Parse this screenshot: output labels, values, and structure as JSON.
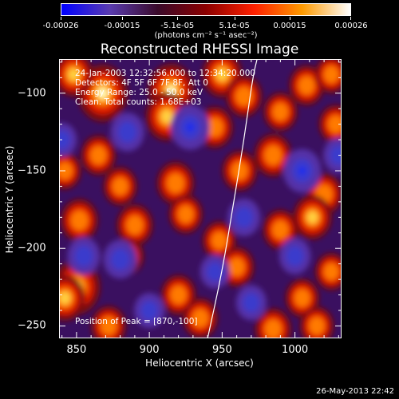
{
  "colorbar": {
    "min": -0.00026,
    "max": 0.00026,
    "tick_labels": [
      "-0.00026",
      "-0.00015",
      "-5.1e-05",
      "5.1e-05",
      "0.00015",
      "0.00026"
    ],
    "tick_values": [
      -0.00026,
      -0.00015,
      -5.1e-05,
      5.1e-05,
      0.00015,
      0.00026
    ],
    "unit_label": "(photons cm⁻² s⁻¹ asec⁻²)",
    "colors": [
      "#0000ff",
      "#5a3cb0",
      "#3a0a2a",
      "#8b0000",
      "#ff2000",
      "#ff9a00",
      "#ffffff"
    ]
  },
  "chart_data": {
    "type": "heatmap",
    "title": "Reconstructed RHESSI Image",
    "xlabel": "Heliocentric X (arcsec)",
    "ylabel": "Heliocentric Y (arcsec)",
    "xlim": [
      838,
      1032
    ],
    "ylim": [
      -258,
      -78
    ],
    "xticks": [
      850,
      900,
      950,
      1000
    ],
    "yticks": [
      -100,
      -150,
      -200,
      -250
    ],
    "annotations": [
      "24-Jan-2003 12:32:56.000 to 12:34:20.000",
      "Detectors: 4F 5F 6F 7F 8F, Att 0",
      "Energy Range: 25.0 - 50.0 keV",
      "Clean.  Total counts: 1.68E+03"
    ],
    "peak_text": "Position of Peak = [870,-100]",
    "peak": [
      870,
      -100
    ],
    "limb_points": [
      [
        940,
        -258
      ],
      [
        950,
        -215
      ],
      [
        958,
        -170
      ],
      [
        965,
        -130
      ],
      [
        971,
        -90
      ],
      [
        974,
        -78
      ]
    ],
    "sources": [
      {
        "x": 868,
        "y": -100,
        "v": 1.0
      },
      {
        "x": 848,
        "y": -88,
        "v": 0.55
      },
      {
        "x": 915,
        "y": -98,
        "v": 0.85
      },
      {
        "x": 912,
        "y": -115,
        "v": 0.7
      },
      {
        "x": 950,
        "y": -88,
        "v": 0.6
      },
      {
        "x": 965,
        "y": -102,
        "v": 0.45
      },
      {
        "x": 1008,
        "y": -95,
        "v": 0.4
      },
      {
        "x": 1025,
        "y": -88,
        "v": 0.3
      },
      {
        "x": 945,
        "y": -122,
        "v": 0.45
      },
      {
        "x": 990,
        "y": -112,
        "v": 0.35
      },
      {
        "x": 865,
        "y": -140,
        "v": 0.4
      },
      {
        "x": 985,
        "y": -140,
        "v": 0.5
      },
      {
        "x": 1028,
        "y": -120,
        "v": 0.35
      },
      {
        "x": 842,
        "y": -150,
        "v": 0.3
      },
      {
        "x": 880,
        "y": -160,
        "v": 0.35
      },
      {
        "x": 918,
        "y": -158,
        "v": 0.5
      },
      {
        "x": 962,
        "y": -150,
        "v": 0.4
      },
      {
        "x": 1020,
        "y": -165,
        "v": 0.45
      },
      {
        "x": 852,
        "y": -182,
        "v": 0.5
      },
      {
        "x": 890,
        "y": -185,
        "v": 0.45
      },
      {
        "x": 925,
        "y": -178,
        "v": 0.35
      },
      {
        "x": 990,
        "y": -188,
        "v": 0.4
      },
      {
        "x": 1012,
        "y": -180,
        "v": 0.55
      },
      {
        "x": 948,
        "y": -195,
        "v": 0.35
      },
      {
        "x": 885,
        "y": -205,
        "v": 0.3
      },
      {
        "x": 960,
        "y": -212,
        "v": 0.4
      },
      {
        "x": 850,
        "y": -225,
        "v": 0.9
      },
      {
        "x": 842,
        "y": -232,
        "v": 0.6
      },
      {
        "x": 920,
        "y": -230,
        "v": 0.4
      },
      {
        "x": 1005,
        "y": -232,
        "v": 0.35
      },
      {
        "x": 1025,
        "y": -215,
        "v": 0.3
      },
      {
        "x": 872,
        "y": -250,
        "v": 0.4
      },
      {
        "x": 935,
        "y": -245,
        "v": 0.4
      },
      {
        "x": 985,
        "y": -252,
        "v": 0.45
      },
      {
        "x": 1015,
        "y": -250,
        "v": 0.35
      },
      {
        "x": 855,
        "y": -205,
        "v": -0.55
      },
      {
        "x": 928,
        "y": -122,
        "v": -0.85
      },
      {
        "x": 885,
        "y": -125,
        "v": -0.6
      },
      {
        "x": 1005,
        "y": -150,
        "v": -0.8
      },
      {
        "x": 965,
        "y": -180,
        "v": -0.55
      },
      {
        "x": 880,
        "y": -207,
        "v": -0.6
      },
      {
        "x": 945,
        "y": -215,
        "v": -0.4
      },
      {
        "x": 1000,
        "y": -205,
        "v": -0.5
      },
      {
        "x": 900,
        "y": -240,
        "v": -0.45
      },
      {
        "x": 970,
        "y": -235,
        "v": -0.45
      },
      {
        "x": 840,
        "y": -130,
        "v": -0.4
      },
      {
        "x": 1030,
        "y": -140,
        "v": -0.45
      }
    ]
  },
  "timestamp": "26-May-2013 22:42"
}
